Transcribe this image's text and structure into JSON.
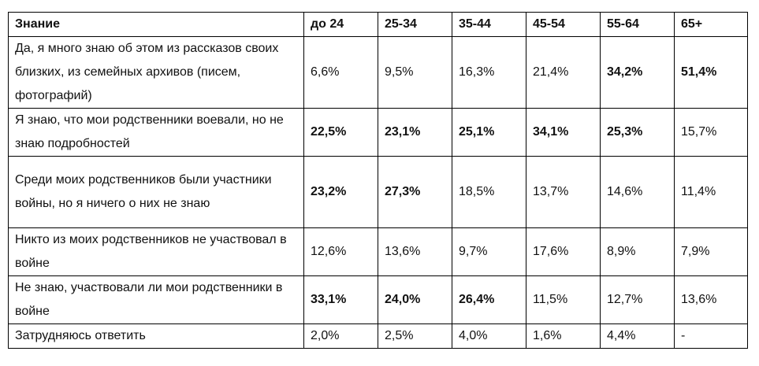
{
  "table": {
    "headers": [
      "Знание",
      "до 24",
      "25-34",
      "35-44",
      "45-54",
      "55-64",
      "65+"
    ],
    "rows": [
      {
        "label": "Да, я много знаю об этом из рассказов своих близких, из семейных архивов (писем, фотографий)",
        "values": [
          "6,6%",
          "9,5%",
          "16,3%",
          "21,4%",
          "34,2%",
          "51,4%"
        ],
        "bold": [
          false,
          false,
          false,
          false,
          true,
          true
        ]
      },
      {
        "label": "Я знаю, что мои родственники воевали, но не знаю подробностей",
        "values": [
          "22,5%",
          "23,1%",
          "25,1%",
          "34,1%",
          "25,3%",
          "15,7%"
        ],
        "bold": [
          true,
          true,
          true,
          true,
          true,
          false
        ]
      },
      {
        "label": "Среди моих родственников были участники войны, но я ничего о них не знаю",
        "values": [
          "23,2%",
          "27,3%",
          "18,5%",
          "13,7%",
          "14,6%",
          "11,4%"
        ],
        "bold": [
          true,
          true,
          false,
          false,
          false,
          false
        ]
      },
      {
        "label": "Никто из моих родственников не участвовал в войне",
        "values": [
          "12,6%",
          "13,6%",
          "9,7%",
          "17,6%",
          "8,9%",
          "7,9%"
        ],
        "bold": [
          false,
          false,
          false,
          false,
          false,
          false
        ]
      },
      {
        "label": "Не знаю, участвовали ли мои родственники в войне",
        "values": [
          "33,1%",
          "24,0%",
          "26,4%",
          "11,5%",
          "12,7%",
          "13,6%"
        ],
        "bold": [
          true,
          true,
          true,
          false,
          false,
          false
        ]
      },
      {
        "label": "Затрудняюсь ответить",
        "values": [
          "2,0%",
          "2,5%",
          "4,0%",
          "1,6%",
          "4,4%",
          "-"
        ],
        "bold": [
          false,
          false,
          false,
          false,
          false,
          false
        ]
      }
    ]
  }
}
